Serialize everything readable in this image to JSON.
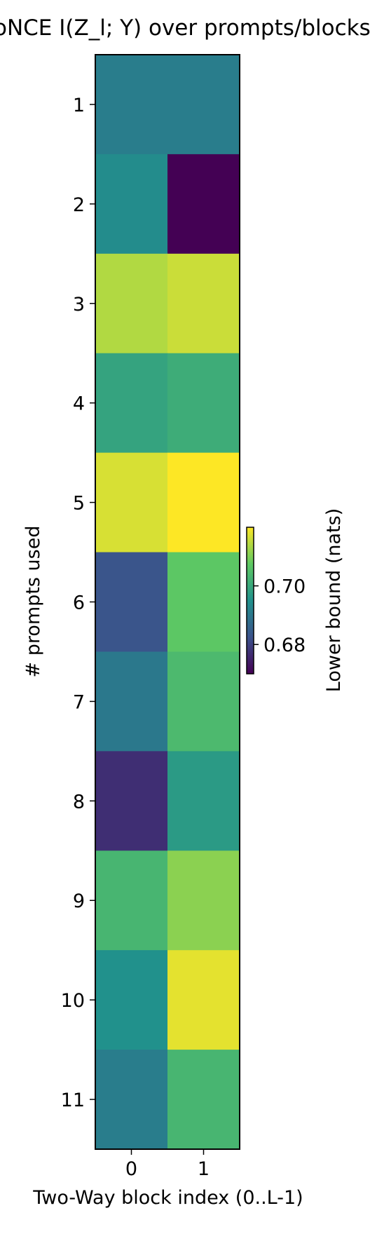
{
  "chart_data": {
    "type": "heatmap",
    "title": "InfoNCE  I(Z_l; Y) over prompts/blocks",
    "xlabel": "Two-Way block index (0..L-1)",
    "ylabel": "# prompts used",
    "x_categories": [
      "0",
      "1"
    ],
    "y_categories": [
      "1",
      "2",
      "3",
      "4",
      "5",
      "6",
      "7",
      "8",
      "9",
      "10",
      "11"
    ],
    "values": [
      [
        0.691,
        0.691
      ],
      [
        0.694,
        0.67
      ],
      [
        0.714,
        0.716
      ],
      [
        0.699,
        0.701
      ],
      [
        0.717,
        0.72
      ],
      [
        0.683,
        0.707
      ],
      [
        0.69,
        0.704
      ],
      [
        0.677,
        0.697
      ],
      [
        0.703,
        0.711
      ],
      [
        0.695,
        0.718
      ],
      [
        0.691,
        0.703
      ]
    ],
    "colormap": "viridis",
    "vmin": 0.67,
    "vmax": 0.72,
    "colorbar": {
      "label": "Lower bound (nats)",
      "ticks": [
        0.68,
        0.7
      ],
      "tick_labels": [
        "0.68",
        "0.70"
      ]
    }
  }
}
